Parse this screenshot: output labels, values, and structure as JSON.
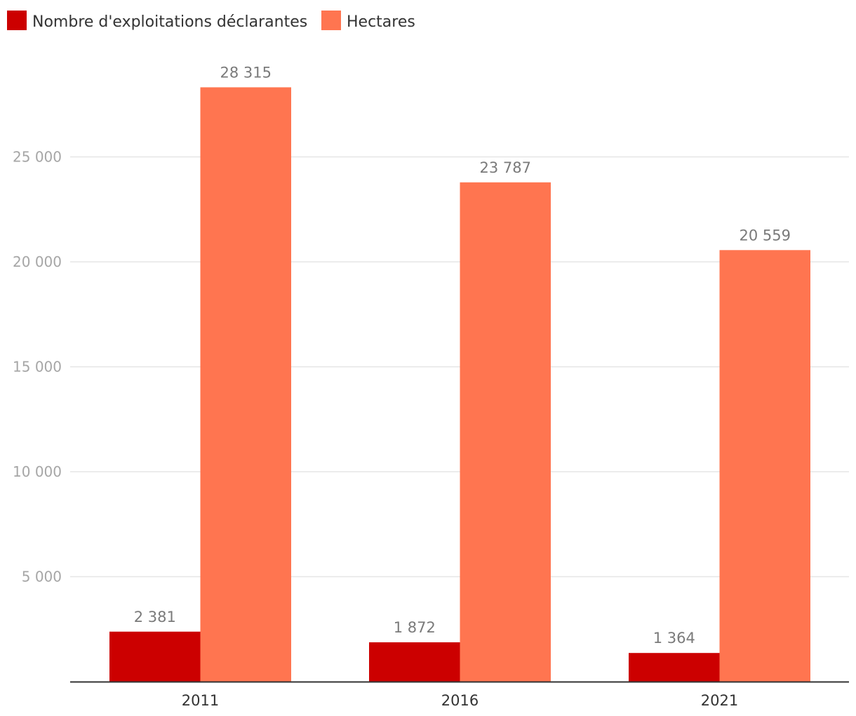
{
  "chart_data": {
    "type": "bar",
    "categories": [
      "2011",
      "2016",
      "2021"
    ],
    "series": [
      {
        "name": "Nombre d'exploitations déclarantes",
        "color": "#cc0000",
        "values": [
          2381,
          1872,
          1364
        ],
        "labels": [
          "2 381",
          "1 872",
          "1 364"
        ]
      },
      {
        "name": "Hectares",
        "color": "#ff7550",
        "values": [
          28315,
          23787,
          20559
        ],
        "labels": [
          "28 315",
          "23 787",
          "20 559"
        ]
      }
    ],
    "yticks": [
      5000,
      10000,
      15000,
      20000,
      25000
    ],
    "ytick_labels": [
      "5 000",
      "10 000",
      "15 000",
      "20 000",
      "25 000"
    ],
    "ylim": [
      0,
      33000
    ],
    "grid": true,
    "legend_position": "top-left",
    "gridline_color": "#e6e6e6",
    "axis_color": "#333333"
  }
}
